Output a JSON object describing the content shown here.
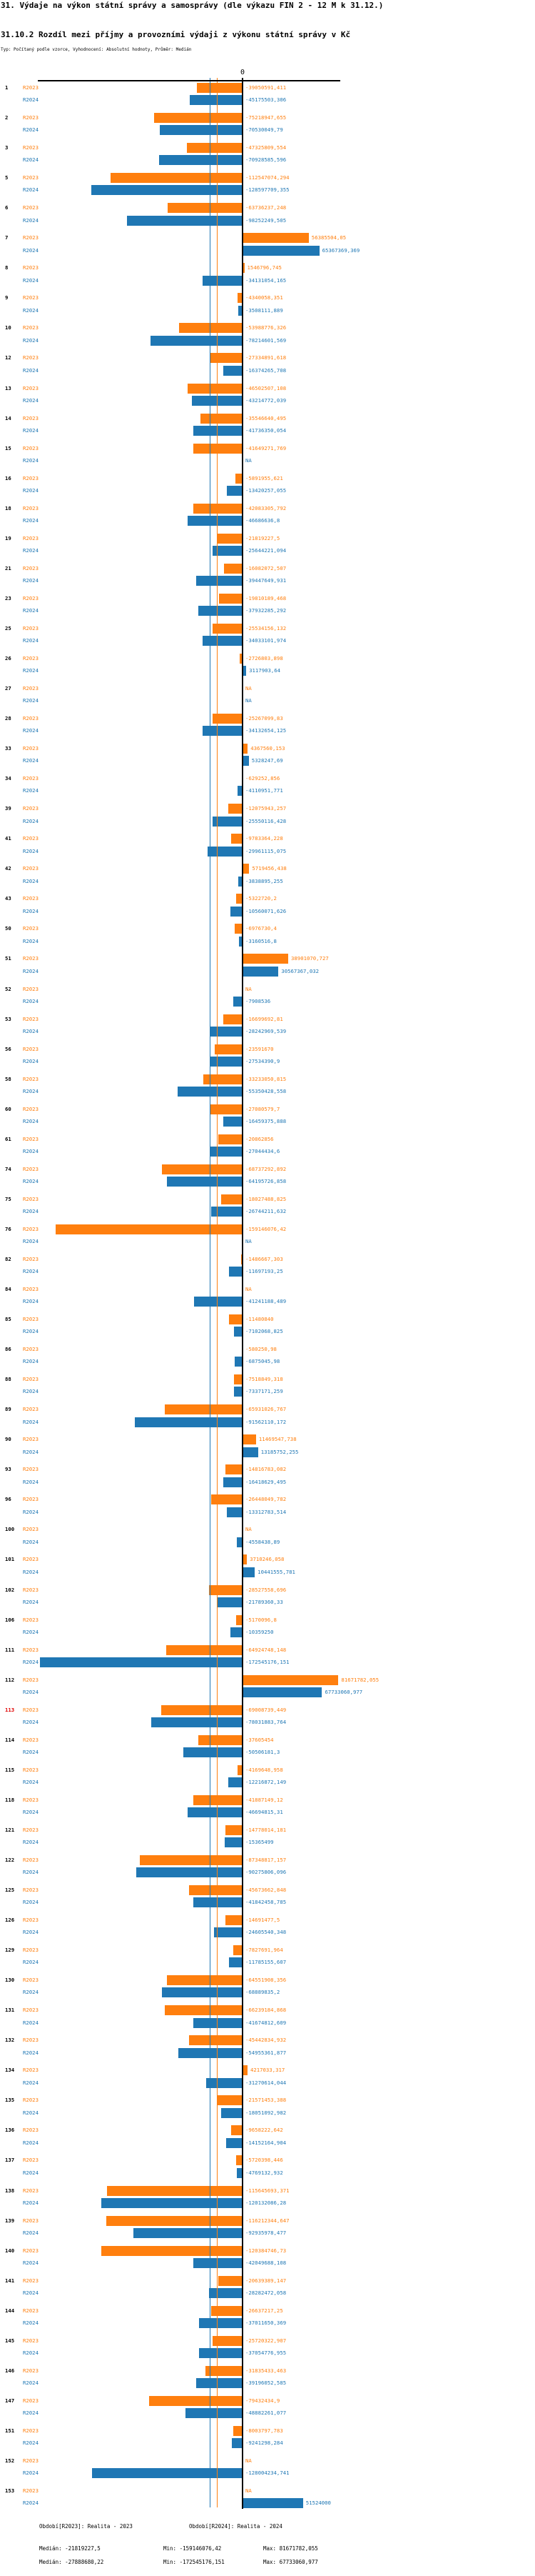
{
  "header": {
    "title": "31. Výdaje na výkon státní správy a samosprávy (dle výkazu FIN 2 - 12 M k 31.12.)",
    "subtitle": "31.10.2 Rozdíl mezi příjmy a provozními výdaji z výkonu státní správy v Kč",
    "type_line": "Typ: Počítaný podle vzorce, Vyhodnocení: Absolutní hodnoty, Průměr: Medián"
  },
  "chart_data": {
    "type": "bar",
    "orientation": "horizontal",
    "unit": "Kč",
    "series_labels": {
      "r2023": "R2023",
      "r2024": "R2024"
    },
    "colors": {
      "r2023": "#ff7f0e",
      "r2024": "#1f77b4",
      "axis": "#000000",
      "highlight_row": "#e00000"
    },
    "axis": {
      "zero_label": "0",
      "xlim": [
        -175000000,
        84000000
      ],
      "grid": false
    },
    "rows": [
      {
        "n": "1",
        "r2023": "-39050591,411",
        "r2024": "-45175503,306"
      },
      {
        "n": "2",
        "r2023": "-75218947,655",
        "r2024": "-70530049,79"
      },
      {
        "n": "3",
        "r2023": "-47325809,554",
        "r2024": "-70928585,596"
      },
      {
        "n": "5",
        "r2023": "-112547074,294",
        "r2024": "-128597709,355"
      },
      {
        "n": "6",
        "r2023": "-63736237,248",
        "r2024": "-98252249,505"
      },
      {
        "n": "7",
        "r2023": "56385504,05",
        "r2024": "65367369,369"
      },
      {
        "n": "8",
        "r2023": "1546796,745",
        "r2024": "-34131054,165"
      },
      {
        "n": "9",
        "r2023": "-4340058,351",
        "r2024": "-3508111,889"
      },
      {
        "n": "10",
        "r2023": "-53988776,326",
        "r2024": "-78214601,569"
      },
      {
        "n": "12",
        "r2023": "-27334891,618",
        "r2024": "-16374265,708"
      },
      {
        "n": "13",
        "r2023": "-46502507,108",
        "r2024": "-43214772,039"
      },
      {
        "n": "14",
        "r2023": "-35546640,495",
        "r2024": "-41736350,054"
      },
      {
        "n": "15",
        "r2023": "-41649271,769",
        "r2024": "NA"
      },
      {
        "n": "16",
        "r2023": "-5891955,621",
        "r2024": "-13420257,055"
      },
      {
        "n": "18",
        "r2023": "-42083305,792",
        "r2024": "-46686636,8"
      },
      {
        "n": "19",
        "r2023": "-21819227,5",
        "r2024": "-25644221,094"
      },
      {
        "n": "21",
        "r2023": "-16082072,507",
        "r2024": "-39447649,931"
      },
      {
        "n": "23",
        "r2023": "-19810189,468",
        "r2024": "-37932285,292"
      },
      {
        "n": "25",
        "r2023": "-25534156,132",
        "r2024": "-34033101,974"
      },
      {
        "n": "26",
        "r2023": "-2726803,898",
        "r2024": "3117903,64"
      },
      {
        "n": "27",
        "r2023": "NA",
        "r2024": "NA"
      },
      {
        "n": "28",
        "r2023": "-25267099,83",
        "r2024": "-34132654,125"
      },
      {
        "n": "33",
        "r2023": "4367560,153",
        "r2024": "5328247,69"
      },
      {
        "n": "34",
        "r2023": "-629252,856",
        "r2024": "-4110951,771"
      },
      {
        "n": "39",
        "r2023": "-12075943,257",
        "r2024": "-25550116,428"
      },
      {
        "n": "41",
        "r2023": "-9783364,228",
        "r2024": "-29961115,075"
      },
      {
        "n": "42",
        "r2023": "5719456,438",
        "r2024": "-3838895,255"
      },
      {
        "n": "43",
        "r2023": "-5322720,2",
        "r2024": "-10560071,626"
      },
      {
        "n": "50",
        "r2023": "-6976730,4",
        "r2024": "-3160516,8"
      },
      {
        "n": "51",
        "r2023": "38901070,727",
        "r2024": "30567367,032"
      },
      {
        "n": "52",
        "r2023": "NA",
        "r2024": "-7908536"
      },
      {
        "n": "53",
        "r2023": "-16699692,81",
        "r2024": "-28242969,539"
      },
      {
        "n": "56",
        "r2023": "-23591670",
        "r2024": "-27534390,9"
      },
      {
        "n": "58",
        "r2023": "-33233050,815",
        "r2024": "-55350428,558"
      },
      {
        "n": "60",
        "r2023": "-27080579,7",
        "r2024": "-16459375,888"
      },
      {
        "n": "61",
        "r2023": "-20862856",
        "r2024": "-27044434,6"
      },
      {
        "n": "74",
        "r2023": "-68737292,892",
        "r2024": "-64195726,858"
      },
      {
        "n": "75",
        "r2023": "-18027488,825",
        "r2024": "-26744211,632"
      },
      {
        "n": "76",
        "r2023": "-159146076,42",
        "r2024": "NA"
      },
      {
        "n": "82",
        "r2023": "-1486667,303",
        "r2024": "-11697193,25"
      },
      {
        "n": "84",
        "r2023": "NA",
        "r2024": "-41241188,489"
      },
      {
        "n": "85",
        "r2023": "-11480840",
        "r2024": "-7102068,825"
      },
      {
        "n": "86",
        "r2023": "-580250,98",
        "r2024": "-6875045,98"
      },
      {
        "n": "88",
        "r2023": "-7518849,318",
        "r2024": "-7337171,259"
      },
      {
        "n": "89",
        "r2023": "-65931026,767",
        "r2024": "-91562110,172"
      },
      {
        "n": "90",
        "r2023": "11469547,738",
        "r2024": "13185752,255"
      },
      {
        "n": "93",
        "r2023": "-14816783,082",
        "r2024": "-16418629,495"
      },
      {
        "n": "96",
        "r2023": "-26448049,782",
        "r2024": "-13312783,514"
      },
      {
        "n": "100",
        "r2023": "NA",
        "r2024": "-4558438,89"
      },
      {
        "n": "101",
        "r2023": "3710246,058",
        "r2024": "10441555,781"
      },
      {
        "n": "102",
        "r2023": "-28527558,696",
        "r2024": "-21789360,33"
      },
      {
        "n": "106",
        "r2023": "-5170096,8",
        "r2024": "-10359250"
      },
      {
        "n": "111",
        "r2023": "-64924748,148",
        "r2024": "-172545176,151"
      },
      {
        "n": "112",
        "r2023": "81671782,055",
        "r2024": "67733060,977"
      },
      {
        "n": "113",
        "highlight": true,
        "r2023": "-69008739,449",
        "r2024": "-78031883,764"
      },
      {
        "n": "114",
        "r2023": "-37605454",
        "r2024": "-50506181,3"
      },
      {
        "n": "115",
        "r2023": "-4169648,958",
        "r2024": "-12216872,149"
      },
      {
        "n": "118",
        "r2023": "-41887149,12",
        "r2024": "-46694815,31"
      },
      {
        "n": "121",
        "r2023": "-14778014,181",
        "r2024": "-15365499"
      },
      {
        "n": "122",
        "r2023": "-87348817,157",
        "r2024": "-90275806,096"
      },
      {
        "n": "125",
        "r2023": "-45673662,848",
        "r2024": "-41842458,785"
      },
      {
        "n": "126",
        "r2023": "-14691477,5",
        "r2024": "-24605540,348"
      },
      {
        "n": "129",
        "r2023": "-7827691,964",
        "r2024": "-11785155,607"
      },
      {
        "n": "130",
        "r2023": "-64551908,356",
        "r2024": "-68889835,2"
      },
      {
        "n": "131",
        "r2023": "-66239184,868",
        "r2024": "-41674812,609"
      },
      {
        "n": "132",
        "r2023": "-45442834,932",
        "r2024": "-54955361,877"
      },
      {
        "n": "134",
        "r2023": "4217033,317",
        "r2024": "-31270614,044"
      },
      {
        "n": "135",
        "r2023": "-21571453,388",
        "r2024": "-18051092,982"
      },
      {
        "n": "136",
        "r2023": "-9658222,642",
        "r2024": "-14152164,904"
      },
      {
        "n": "137",
        "r2023": "-5720398,446",
        "r2024": "-4769132,932"
      },
      {
        "n": "138",
        "r2023": "-115645693,371",
        "r2024": "-120132086,28"
      },
      {
        "n": "139",
        "r2023": "-116212344,647",
        "r2024": "-92935978,477"
      },
      {
        "n": "140",
        "r2023": "-120384746,73",
        "r2024": "-42049688,108"
      },
      {
        "n": "141",
        "r2023": "-20639389,147",
        "r2024": "-28282472,058"
      },
      {
        "n": "144",
        "r2023": "-26637217,25",
        "r2024": "-37011650,369"
      },
      {
        "n": "145",
        "r2023": "-25720322,907",
        "r2024": "-37054776,955"
      },
      {
        "n": "146",
        "r2023": "-31835433,463",
        "r2024": "-39196052,585"
      },
      {
        "n": "147",
        "r2023": "-79432434,9",
        "r2024": "-48882261,077"
      },
      {
        "n": "151",
        "r2023": "-8003797,783",
        "r2024": "-9241298,284"
      },
      {
        "n": "152",
        "r2023": "NA",
        "r2024": "-128004234,741"
      },
      {
        "n": "153",
        "r2023": "NA",
        "r2024": "51524000"
      }
    ],
    "footer": {
      "period_r2023": "Období[R2023]: Realita - 2023",
      "period_r2024": "Období[R2024]: Realita - 2024",
      "stats_r2023": {
        "median": "Medián: -21819227,5",
        "min": "Min: -159146076,42",
        "max": "Max: 81671782,055"
      },
      "stats_r2024": {
        "median": "Medián: -27888680,22",
        "min": "Min: -172545176,151",
        "max": "Max: 67733060,977"
      }
    }
  }
}
